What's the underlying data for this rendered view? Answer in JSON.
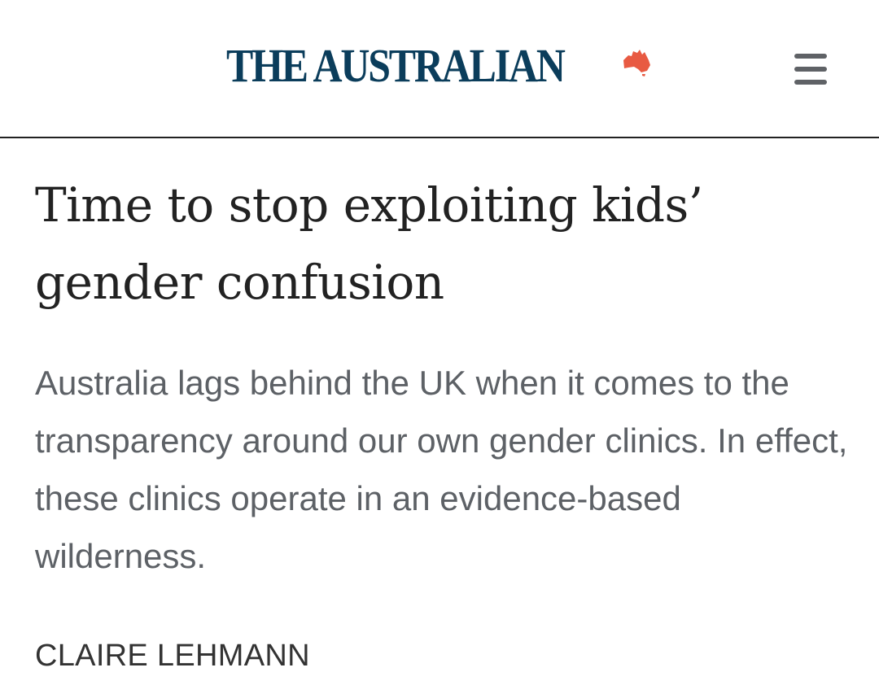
{
  "header": {
    "logo_text": "THE AUSTRALIAN",
    "logo_color": "#0b3d5b",
    "logo_map_color": "#e85a42",
    "menu_icon": "hamburger-menu-icon"
  },
  "article": {
    "headline": "Time to stop exploiting kids’ gender confusion",
    "standfirst": "Australia lags behind the UK when it comes to the transparency around our own gender clinics. In effect, these clinics operate in an evidence-based wilderness.",
    "author": "CLAIRE LEHMANN"
  }
}
